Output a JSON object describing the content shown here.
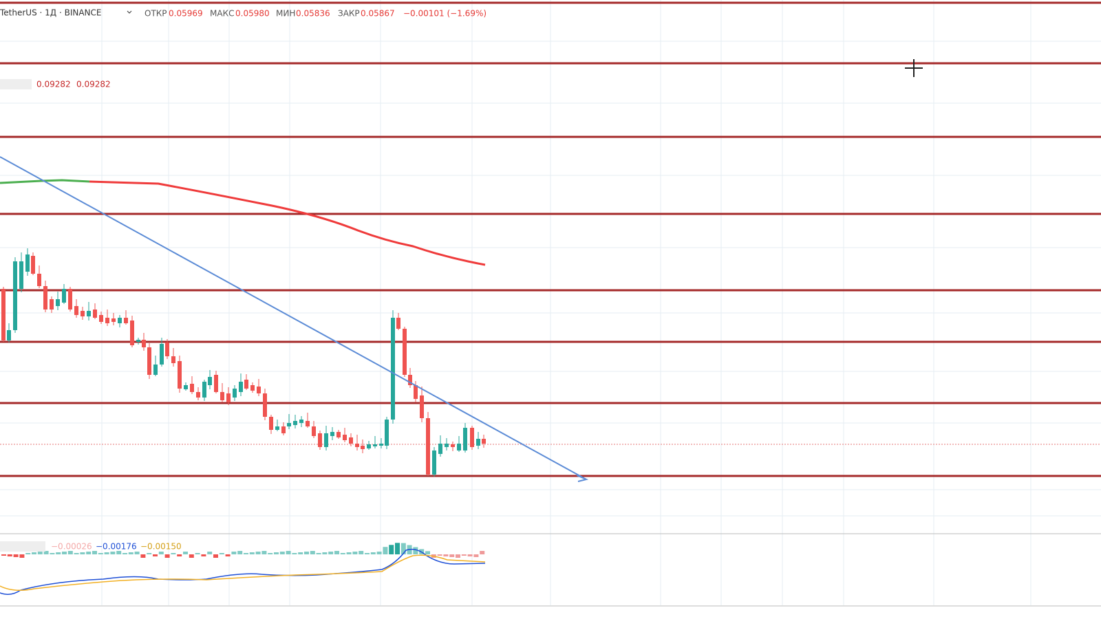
{
  "header": {
    "symbol": "TetherUS · 1Д · BINANCE",
    "ohlc": [
      {
        "label": "ОТКР",
        "value": "0.05969"
      },
      {
        "label": "МАКС",
        "value": "0.05980"
      },
      {
        "label": "МИН",
        "value": "0.05836"
      },
      {
        "label": "ЗАКР",
        "value": "0.05867"
      }
    ],
    "change": "−0.00101 (−1.69%)"
  },
  "indicator": {
    "values": [
      "0.09282",
      "0.09282"
    ]
  },
  "macd": {
    "values": [
      "−0.00026",
      "−0.00176",
      "−0.00150"
    ]
  }
}
